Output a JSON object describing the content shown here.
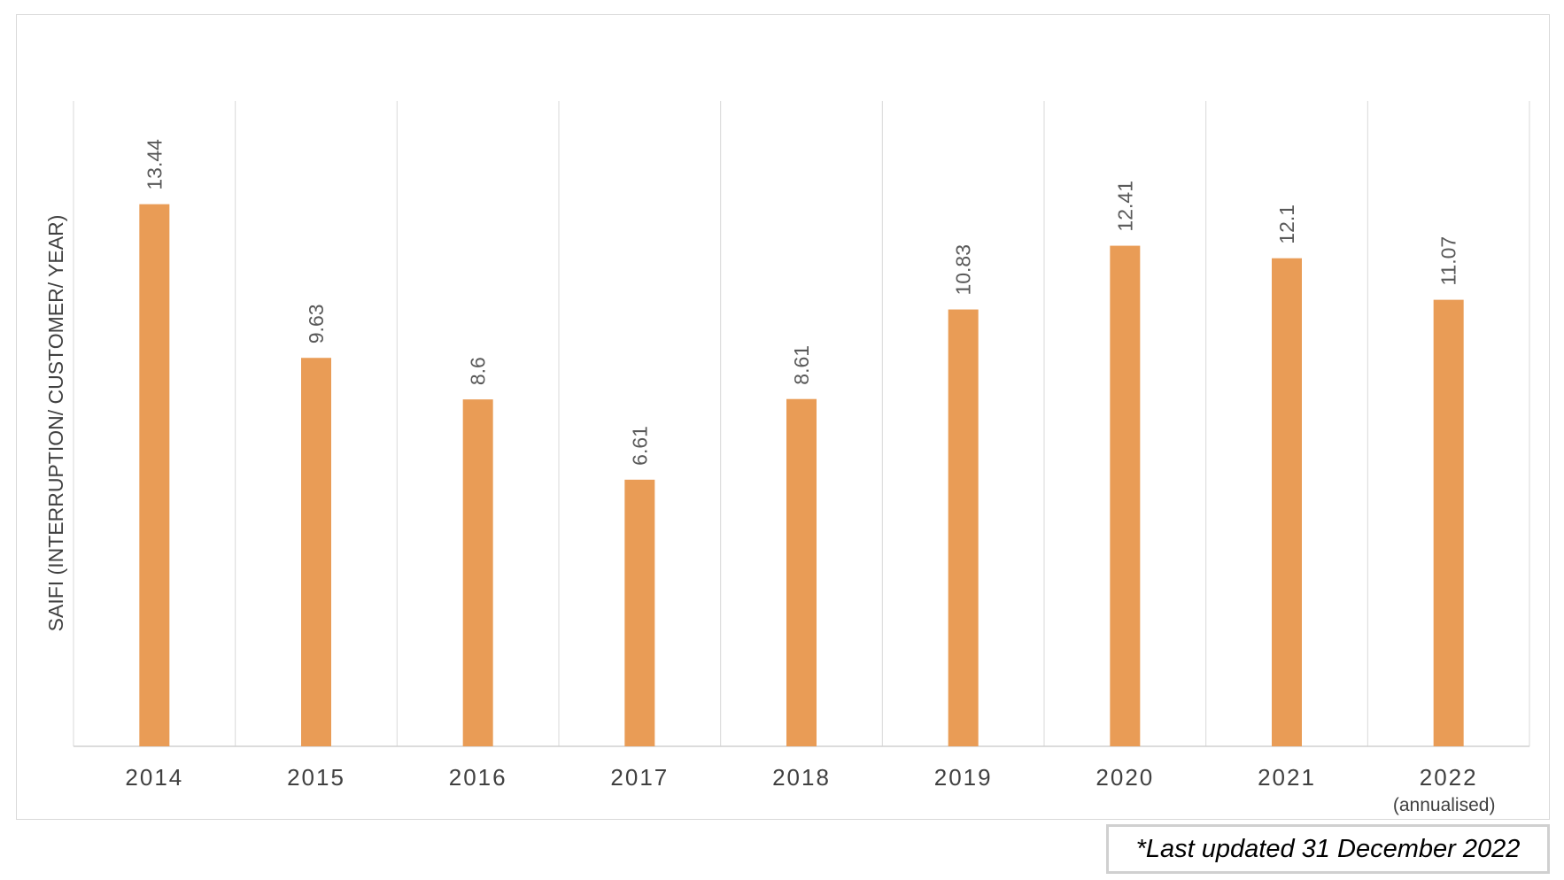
{
  "footnote": "*Last updated 31 December 2022",
  "chart_data": {
    "type": "bar",
    "title": "",
    "xlabel": "",
    "ylabel": "SAIFI (INTERRUPTION/ CUSTOMER/ YEAR)",
    "categories": [
      "2014",
      "2015",
      "2016",
      "2017",
      "2018",
      "2019",
      "2020",
      "2021",
      "2022"
    ],
    "category_sublabels": [
      "",
      "",
      "",
      "",
      "",
      "",
      "",
      "",
      "(annualised)"
    ],
    "values": [
      13.44,
      9.63,
      8.6,
      6.61,
      8.61,
      10.83,
      12.41,
      12.1,
      11.07
    ],
    "data_labels": [
      "13.44",
      "9.63",
      "8.6",
      "6.61",
      "8.61",
      "10.83",
      "12.41",
      "12.1",
      "11.07"
    ],
    "ylim": [
      0,
      16
    ],
    "grid": "vertical category separators",
    "legend": "none",
    "bar_color": "#E99C56"
  }
}
